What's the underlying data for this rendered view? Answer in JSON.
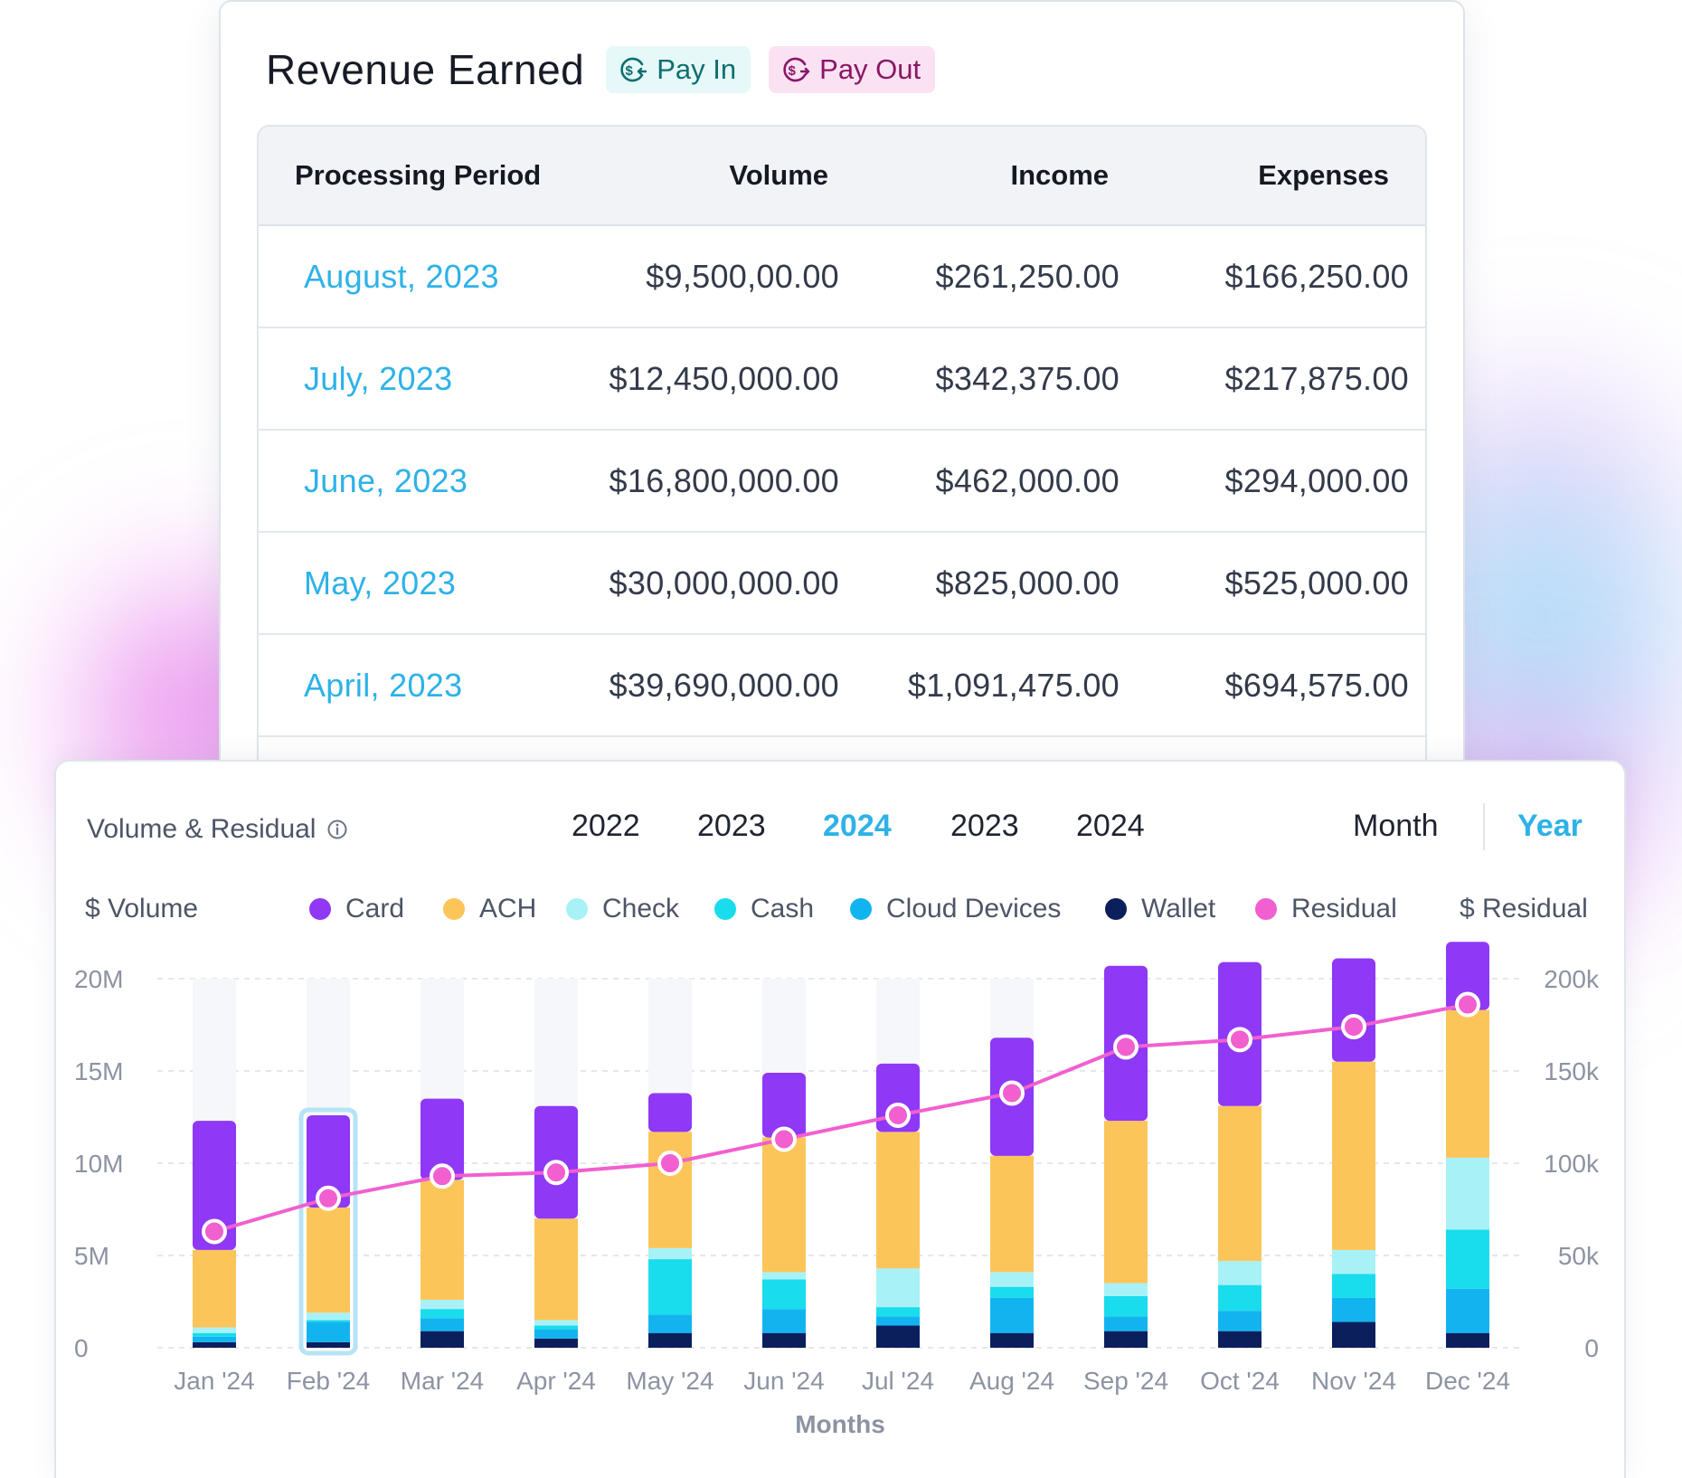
{
  "revenue": {
    "title": "Revenue Earned",
    "pay_in": "Pay In",
    "pay_out": "Pay Out",
    "columns": [
      "Processing Period",
      "Volume",
      "Income",
      "Expenses"
    ],
    "rows": [
      {
        "period": "August, 2023",
        "volume": "$9,500,00.00",
        "income": "$261,250.00",
        "expenses": "$166,250.00"
      },
      {
        "period": "July, 2023",
        "volume": "$12,450,000.00",
        "income": "$342,375.00",
        "expenses": "$217,875.00"
      },
      {
        "period": "June, 2023",
        "volume": "$16,800,000.00",
        "income": "$462,000.00",
        "expenses": "$294,000.00"
      },
      {
        "period": "May, 2023",
        "volume": "$30,000,000.00",
        "income": "$825,000.00",
        "expenses": "$525,000.00"
      },
      {
        "period": "April, 2023",
        "volume": "$39,690,000.00",
        "income": "$1,091,475.00",
        "expenses": "$694,575.00"
      }
    ]
  },
  "chart_panel": {
    "title": "Volume & Residual",
    "years": [
      "2022",
      "2023",
      "2024",
      "2023",
      "2024"
    ],
    "active_year_index": 2,
    "periods": [
      "Month",
      "Year"
    ],
    "active_period": "Year",
    "left_axis_title": "$ Volume",
    "right_axis_title": "$ Residual"
  },
  "chart_data": {
    "type": "bar",
    "stacked": true,
    "title": "Volume & Residual",
    "xlabel": "Months",
    "ylabel": "$ Volume",
    "y2label": "$ Residual",
    "ylim": [
      0,
      20000000
    ],
    "y2lim": [
      0,
      200000
    ],
    "yticks": [
      "0",
      "5M",
      "10M",
      "15M",
      "20M"
    ],
    "y2ticks": [
      "0",
      "50k",
      "100k",
      "150k",
      "200k"
    ],
    "categories": [
      "Jan '24",
      "Feb '24",
      "Mar '24",
      "Apr '24",
      "May '24",
      "Jun '24",
      "Jul '24",
      "Aug '24",
      "Sep '24",
      "Oct '24",
      "Nov '24",
      "Dec '24"
    ],
    "highlighted_category": "Feb '24",
    "series": [
      {
        "name": "Wallet",
        "color": "#0b1f5c",
        "values": [
          300000,
          300000,
          900000,
          500000,
          800000,
          800000,
          1200000,
          800000,
          900000,
          900000,
          1400000,
          800000
        ]
      },
      {
        "name": "Cloud Devices",
        "color": "#12b4f0",
        "values": [
          300000,
          1100000,
          700000,
          500000,
          1000000,
          1300000,
          500000,
          1900000,
          800000,
          1100000,
          1300000,
          2400000
        ]
      },
      {
        "name": "Cash",
        "color": "#19dced",
        "values": [
          200000,
          100000,
          500000,
          200000,
          3000000,
          1600000,
          500000,
          600000,
          1100000,
          1400000,
          1300000,
          3200000
        ]
      },
      {
        "name": "Check",
        "color": "#a8f2f7",
        "values": [
          300000,
          400000,
          500000,
          300000,
          600000,
          400000,
          2100000,
          800000,
          700000,
          1300000,
          1300000,
          3900000
        ]
      },
      {
        "name": "ACH",
        "color": "#fcc55a",
        "values": [
          4200000,
          5700000,
          6500000,
          5500000,
          6300000,
          7300000,
          7400000,
          6300000,
          8800000,
          8400000,
          10200000,
          8000000
        ]
      },
      {
        "name": "Card",
        "color": "#8f38f5",
        "values": [
          7000000,
          5000000,
          4400000,
          6100000,
          2100000,
          3500000,
          3700000,
          6400000,
          8400000,
          7800000,
          5600000,
          3700000
        ]
      }
    ],
    "line_series": {
      "name": "Residual",
      "color": "#f25fcf",
      "axis": "right",
      "values": [
        63000,
        81000,
        93000,
        95000,
        100000,
        113000,
        126000,
        138000,
        163000,
        167000,
        174000,
        186000
      ]
    },
    "legend": [
      {
        "name": "Card",
        "color": "#8f38f5"
      },
      {
        "name": "ACH",
        "color": "#fcc55a"
      },
      {
        "name": "Check",
        "color": "#a8f2f7"
      },
      {
        "name": "Cash",
        "color": "#19dced"
      },
      {
        "name": "Cloud Devices",
        "color": "#12b4f0"
      },
      {
        "name": "Wallet",
        "color": "#0b1f5c"
      },
      {
        "name": "Residual",
        "color": "#f25fcf"
      }
    ]
  }
}
